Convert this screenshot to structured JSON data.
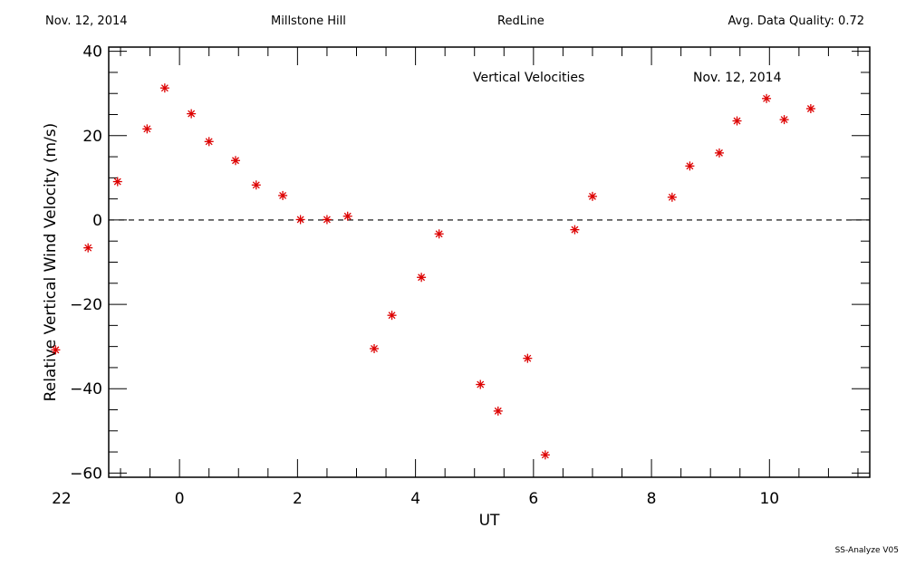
{
  "header": {
    "date": "Nov. 12, 2014",
    "site": "Millstone Hill",
    "instrument": "RedLine",
    "quality": "Avg. Data Quality: 0.72"
  },
  "footer": {
    "software": "SS-Analyze V05"
  },
  "chart_data": {
    "type": "scatter",
    "title": "",
    "annotations": [
      "Vertical Velocities",
      "Nov. 12, 2014"
    ],
    "xlabel": "UT",
    "ylabel": "Relative Vertical Wind Velocity (m/s)",
    "xlim": [
      22.8,
      35.7
    ],
    "ylim": [
      -61,
      41
    ],
    "xticks": [
      {
        "v": 22,
        "label": "22"
      },
      {
        "v": 24,
        "label": "0"
      },
      {
        "v": 26,
        "label": "2"
      },
      {
        "v": 28,
        "label": "4"
      },
      {
        "v": 30,
        "label": "6"
      },
      {
        "v": 32,
        "label": "8"
      },
      {
        "v": 34,
        "label": "10"
      }
    ],
    "yticks": [
      -60,
      -40,
      -20,
      0,
      20,
      40
    ],
    "reference_line": 0,
    "grid": false,
    "marker": "asterisk",
    "marker_color": "#dd0000",
    "series": [
      {
        "points": [
          [
            21.9,
            -30.8
          ],
          [
            22.45,
            -6.6
          ],
          [
            22.95,
            9.1
          ],
          [
            23.45,
            21.6
          ],
          [
            23.75,
            31.3
          ],
          [
            24.2,
            25.2
          ],
          [
            24.5,
            18.6
          ],
          [
            24.95,
            14.1
          ],
          [
            25.3,
            8.3
          ],
          [
            25.75,
            5.8
          ],
          [
            26.05,
            0.1
          ],
          [
            26.5,
            0.1
          ],
          [
            26.85,
            0.9
          ],
          [
            27.3,
            -30.5
          ],
          [
            27.6,
            -22.6
          ],
          [
            28.1,
            -13.6
          ],
          [
            28.4,
            -3.3
          ],
          [
            29.1,
            -39.0
          ],
          [
            29.4,
            -45.3
          ],
          [
            29.9,
            -32.8
          ],
          [
            30.2,
            -55.7
          ],
          [
            30.7,
            -2.3
          ],
          [
            31.0,
            5.6
          ],
          [
            32.35,
            5.4
          ],
          [
            32.65,
            12.8
          ],
          [
            33.15,
            15.9
          ],
          [
            33.45,
            23.5
          ],
          [
            33.95,
            28.8
          ],
          [
            34.25,
            23.8
          ],
          [
            34.7,
            26.4
          ]
        ]
      }
    ]
  }
}
